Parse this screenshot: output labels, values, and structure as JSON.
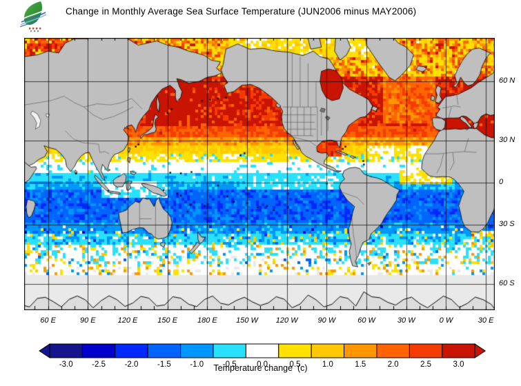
{
  "header": {
    "title": "Change in Monthly Average Sea Surface Temperature (JUN2006 minus MAY2006)",
    "logo": {
      "name": "green-leaf-ocean-wave-logo"
    }
  },
  "map": {
    "lat_labels": [
      {
        "text": "60 N",
        "lat": 60
      },
      {
        "text": "30 N",
        "lat": 30
      },
      {
        "text": "0",
        "lat": 0
      },
      {
        "text": "30 S",
        "lat": -30
      },
      {
        "text": "60 S",
        "lat": -60
      }
    ],
    "lon_labels": [
      {
        "text": "60 E",
        "lon": 60
      },
      {
        "text": "90 E",
        "lon": 90
      },
      {
        "text": "120 E",
        "lon": 120
      },
      {
        "text": "150 E",
        "lon": 150
      },
      {
        "text": "180 E",
        "lon": 180
      },
      {
        "text": "150 W",
        "lon": 210
      },
      {
        "text": "120 W",
        "lon": 240
      },
      {
        "text": "90 W",
        "lon": 270
      },
      {
        "text": "60 W",
        "lon": 300
      },
      {
        "text": "30 W",
        "lon": 330
      },
      {
        "text": "0 W",
        "lon": 360
      },
      {
        "text": "30 E",
        "lon": 390
      }
    ],
    "land_color": "#bfbfbf",
    "no_data_color": "#e9e9e9",
    "grid_color": "#000000"
  },
  "colorbar": {
    "caption": "Temperature change  (c)"
  },
  "chart_data": {
    "type": "heatmap",
    "subtype": "geographic-sst-anomaly-map",
    "title": "Change in Monthly Average Sea Surface Temperature (JUN2006 minus MAY2006)",
    "period": "JUN2006 minus MAY2006",
    "units": "C",
    "projection": "mercator pacific-centered, lon 42E eastward around globe, lat approx 70S to 73N",
    "scale": {
      "labels": [
        "-3.0",
        "-2.5",
        "-2.0",
        "-1.5",
        "-1.0",
        "-0.5",
        "0.0",
        "0.5",
        "1.0",
        "1.5",
        "2.0",
        "2.5",
        "3.0"
      ],
      "values": [
        -3.0,
        -2.5,
        -2.0,
        -1.5,
        -1.0,
        -0.5,
        0.0,
        0.5,
        1.0,
        1.5,
        2.0,
        2.5,
        3.0
      ],
      "colors": [
        "#14148c",
        "#0000cd",
        "#0028ff",
        "#0064ff",
        "#0096ff",
        "#28e1ff",
        "#ffffff",
        "#ffe100",
        "#ffc800",
        "#ff9600",
        "#ff6400",
        "#f53c00",
        "#c81400"
      ],
      "step": 0.5
    },
    "zonal_bands": [
      {
        "lat_min": 73,
        "lat_max": 90,
        "mean": 0.4,
        "spread": 1.2
      },
      {
        "lat_min": 62,
        "lat_max": 73,
        "mean": 1.7,
        "spread": 1.6
      },
      {
        "lat_min": 38,
        "lat_max": 62,
        "mean": 2.9,
        "spread": 0.55
      },
      {
        "lat_min": 32,
        "lat_max": 38,
        "mean": 2.3,
        "spread": 0.6
      },
      {
        "lat_min": 27,
        "lat_max": 32,
        "mean": 1.4,
        "spread": 0.55
      },
      {
        "lat_min": 22,
        "lat_max": 27,
        "mean": 0.8,
        "spread": 0.45
      },
      {
        "lat_min": 16,
        "lat_max": 22,
        "mean": 0.35,
        "spread": 0.4
      },
      {
        "lat_min": 8,
        "lat_max": 16,
        "mean": -0.05,
        "spread": 0.35
      },
      {
        "lat_min": 0,
        "lat_max": 8,
        "mean": -0.55,
        "spread": 0.4
      },
      {
        "lat_min": -6,
        "lat_max": 0,
        "mean": -0.8,
        "spread": 0.45
      },
      {
        "lat_min": -28,
        "lat_max": -6,
        "mean": -1.5,
        "spread": 0.65
      },
      {
        "lat_min": -35,
        "lat_max": -28,
        "mean": -1.05,
        "spread": 0.5
      },
      {
        "lat_min": -42,
        "lat_max": -35,
        "mean": -0.55,
        "spread": 0.55
      },
      {
        "lat_min": -52,
        "lat_max": -42,
        "mean": -0.1,
        "spread": 0.5
      },
      {
        "lat_min": -57,
        "lat_max": -52,
        "mean": 0.05,
        "spread": 0.35
      }
    ],
    "no_data_south_of": -57,
    "regional_overrides": [
      {
        "name": "mediterranean-black-sea",
        "lon": [
          355,
          402
        ],
        "lat": [
          30.5,
          45.5
        ],
        "mean": 3.1,
        "spread": 0.3
      },
      {
        "name": "baltic-north-sea",
        "lon": [
          372,
          392
        ],
        "lat": [
          53,
          61
        ],
        "mean": 3.0,
        "spread": 0.4
      },
      {
        "name": "okhotsk-nw-pacific",
        "lon": [
          140,
          185
        ],
        "lat": [
          38,
          60
        ],
        "mean": 3.05,
        "spread": 0.4
      },
      {
        "name": "barents-kara-sea",
        "lon": [
          42,
          80
        ],
        "lat": [
          65,
          73.5
        ],
        "mean": 2.6,
        "spread": 0.9
      },
      {
        "name": "canadian-arctic",
        "lon": [
          195,
          310
        ],
        "lat": [
          68,
          73.5
        ],
        "mean": 0.6,
        "spread": 0.9
      },
      {
        "name": "gulf-of-mexico",
        "lon": [
          261,
          282
        ],
        "lat": [
          20,
          31
        ],
        "mean": 2.6,
        "spread": 0.55
      },
      {
        "name": "subtropical-n-atlantic",
        "lon": [
          300,
          352
        ],
        "lat": [
          16,
          26
        ],
        "mean": 0.25,
        "spread": 0.5
      },
      {
        "name": "ne-atlantic",
        "lon": [
          312,
          352
        ],
        "lat": [
          40,
          62
        ],
        "mean": 2.0,
        "spread": 0.8
      },
      {
        "name": "equatorial-atlantic",
        "lon": [
          325,
          365
        ],
        "lat": [
          0,
          9
        ],
        "mean": 0.3,
        "spread": 0.5
      },
      {
        "name": "equatorial-e-pacific",
        "lon": [
          210,
          280
        ],
        "lat": [
          -5,
          5
        ],
        "mean": -0.35,
        "spread": 0.45
      },
      {
        "name": "indonesian-warm-pool",
        "lon": [
          100,
          150
        ],
        "lat": [
          -12,
          2
        ],
        "mean": -0.25,
        "spread": 0.45
      },
      {
        "name": "agulhas-region",
        "lon": [
          378,
          402
        ],
        "lat": [
          -44,
          -34
        ],
        "mean": 0.2,
        "spread": 1.2
      }
    ]
  }
}
